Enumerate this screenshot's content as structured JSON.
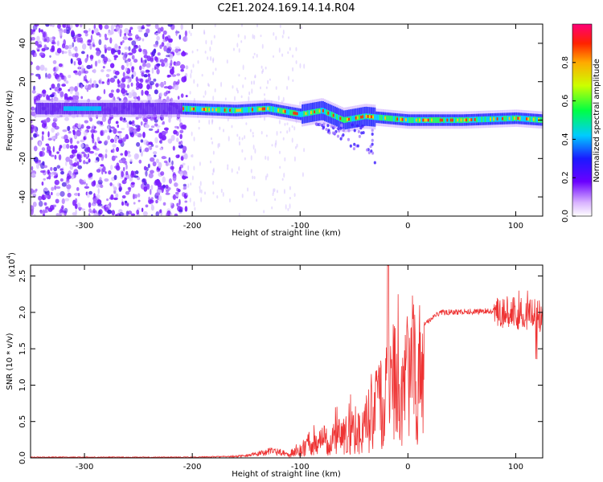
{
  "title": "C2E1.2024.169.14.14.R04",
  "colors": {
    "snr_line": "#ee3333",
    "axis": "#000000",
    "background": "#ffffff"
  },
  "chart_data": [
    {
      "type": "heatmap",
      "xlabel": "Height of straight line (km)",
      "ylabel": "Frequency (Hz)",
      "xlim": [
        -350,
        125
      ],
      "ylim": [
        -50,
        50
      ],
      "xticks": [
        "-300",
        "-200",
        "-100",
        "0",
        "100"
      ],
      "yticks": [
        "-40",
        "-20",
        "0",
        "20",
        "40"
      ],
      "colorbar": {
        "label": "Normalized spectral amplitude",
        "range": [
          0,
          1
        ],
        "ticks": [
          "0.0",
          "0.2",
          "0.4",
          "0.6",
          "0.8"
        ],
        "colormap": "rainbow (white-purple-blue-cyan-green-yellow-red-magenta)"
      },
      "ridge": {
        "description": "strong spectral ridge near 0-7 Hz",
        "points": [
          {
            "x": -300,
            "y": 6
          },
          {
            "x": -210,
            "y": 6
          },
          {
            "x": -160,
            "y": 5
          },
          {
            "x": -130,
            "y": 6
          },
          {
            "x": -100,
            "y": 3
          },
          {
            "x": -80,
            "y": 5
          },
          {
            "x": -60,
            "y": 0
          },
          {
            "x": -40,
            "y": 2
          },
          {
            "x": -20,
            "y": 1
          },
          {
            "x": 0,
            "y": 0
          },
          {
            "x": 50,
            "y": 0
          },
          {
            "x": 100,
            "y": 1
          },
          {
            "x": 125,
            "y": 0
          }
        ]
      },
      "grid": false
    },
    {
      "type": "line",
      "xlabel": "Height of straight line (km)",
      "ylabel": "SNR (10 * v/v)",
      "yscale_label": "(x10",
      "yscale_exp": "4",
      "yscale_close": ")",
      "xlim": [
        -350,
        125
      ],
      "ylim": [
        0,
        2.65
      ],
      "xticks": [
        "-300",
        "-200",
        "-100",
        "0",
        "100"
      ],
      "yticks": [
        "0.0",
        "0.5",
        "1.0",
        "1.5",
        "2.0",
        "2.5"
      ],
      "series": [
        {
          "envelope": [
            {
              "x": -350,
              "y": 0.01
            },
            {
              "x": -200,
              "y": 0.01
            },
            {
              "x": -160,
              "y": 0.02
            },
            {
              "x": -140,
              "y": 0.05
            },
            {
              "x": -125,
              "y": 0.1
            },
            {
              "x": -110,
              "y": 0.05
            },
            {
              "x": -95,
              "y": 0.25
            },
            {
              "x": -80,
              "y": 0.35
            },
            {
              "x": -60,
              "y": 0.45
            },
            {
              "x": -40,
              "y": 0.7
            },
            {
              "x": -25,
              "y": 1.1
            },
            {
              "x": -15,
              "y": 1.5
            },
            {
              "x": 0,
              "y": 1.5
            },
            {
              "x": 15,
              "y": 1.85
            },
            {
              "x": 30,
              "y": 2.0
            },
            {
              "x": 80,
              "y": 2.02
            },
            {
              "x": 100,
              "y": 2.0
            },
            {
              "x": 125,
              "y": 1.95
            }
          ]
        }
      ],
      "grid": false
    }
  ]
}
